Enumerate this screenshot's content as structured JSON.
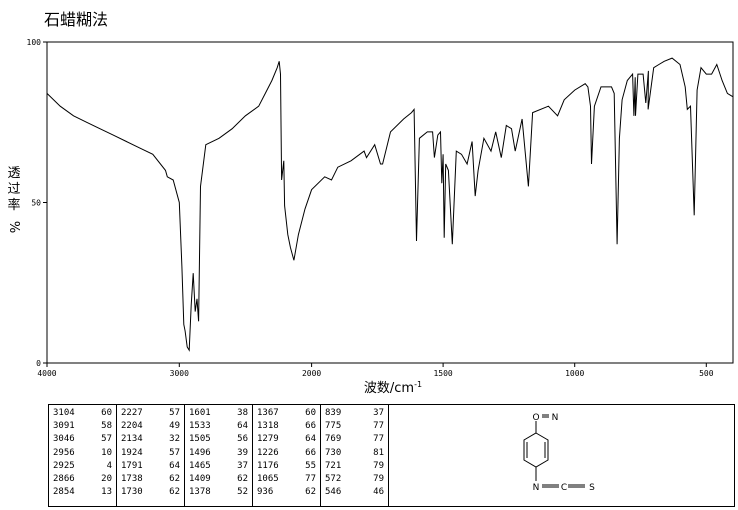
{
  "chart_data": {
    "type": "line",
    "title": "石蜡糊法",
    "xlabel": "波数/cm",
    "xlabel_sup": "-1",
    "ylabel_chars": [
      "透",
      "过",
      "率"
    ],
    "ylabel_unit": "%",
    "xlim": [
      4000,
      400
    ],
    "ylim": [
      0,
      100
    ],
    "x_ticks": [
      4000,
      3000,
      2000,
      1500,
      1000,
      500
    ],
    "y_ticks": [
      0,
      50,
      100
    ],
    "grid": false,
    "series": [
      {
        "points": [
          [
            4000,
            84
          ],
          [
            3900,
            80
          ],
          [
            3800,
            77
          ],
          [
            3700,
            75
          ],
          [
            3600,
            73
          ],
          [
            3500,
            71
          ],
          [
            3400,
            69
          ],
          [
            3300,
            67
          ],
          [
            3200,
            65
          ],
          [
            3104,
            60
          ],
          [
            3091,
            58
          ],
          [
            3046,
            57
          ],
          [
            3000,
            50
          ],
          [
            2980,
            30
          ],
          [
            2966,
            12
          ],
          [
            2956,
            10
          ],
          [
            2940,
            5
          ],
          [
            2925,
            4
          ],
          [
            2910,
            18
          ],
          [
            2895,
            28
          ],
          [
            2880,
            16
          ],
          [
            2866,
            20
          ],
          [
            2854,
            13
          ],
          [
            2840,
            55
          ],
          [
            2800,
            68
          ],
          [
            2700,
            70
          ],
          [
            2600,
            73
          ],
          [
            2500,
            77
          ],
          [
            2400,
            80
          ],
          [
            2350,
            84
          ],
          [
            2300,
            88
          ],
          [
            2260,
            92
          ],
          [
            2245,
            94
          ],
          [
            2235,
            90
          ],
          [
            2227,
            57
          ],
          [
            2210,
            63
          ],
          [
            2204,
            49
          ],
          [
            2180,
            40
          ],
          [
            2160,
            36
          ],
          [
            2134,
            32
          ],
          [
            2100,
            40
          ],
          [
            2050,
            48
          ],
          [
            2000,
            54
          ],
          [
            1950,
            58
          ],
          [
            1924,
            57
          ],
          [
            1900,
            61
          ],
          [
            1850,
            63
          ],
          [
            1800,
            66
          ],
          [
            1791,
            64
          ],
          [
            1760,
            68
          ],
          [
            1738,
            62
          ],
          [
            1730,
            62
          ],
          [
            1700,
            72
          ],
          [
            1650,
            76
          ],
          [
            1620,
            78
          ],
          [
            1610,
            79
          ],
          [
            1601,
            38
          ],
          [
            1590,
            70
          ],
          [
            1560,
            72
          ],
          [
            1540,
            72
          ],
          [
            1533,
            64
          ],
          [
            1520,
            71
          ],
          [
            1510,
            72
          ],
          [
            1505,
            56
          ],
          [
            1500,
            65
          ],
          [
            1496,
            39
          ],
          [
            1490,
            62
          ],
          [
            1480,
            60
          ],
          [
            1465,
            37
          ],
          [
            1450,
            66
          ],
          [
            1430,
            65
          ],
          [
            1409,
            62
          ],
          [
            1390,
            69
          ],
          [
            1378,
            52
          ],
          [
            1367,
            60
          ],
          [
            1345,
            70
          ],
          [
            1318,
            66
          ],
          [
            1300,
            72
          ],
          [
            1279,
            64
          ],
          [
            1260,
            74
          ],
          [
            1240,
            73
          ],
          [
            1226,
            66
          ],
          [
            1200,
            76
          ],
          [
            1176,
            55
          ],
          [
            1160,
            78
          ],
          [
            1100,
            80
          ],
          [
            1065,
            77
          ],
          [
            1040,
            82
          ],
          [
            1000,
            85
          ],
          [
            960,
            87
          ],
          [
            950,
            86
          ],
          [
            940,
            80
          ],
          [
            936,
            62
          ],
          [
            925,
            80
          ],
          [
            900,
            86
          ],
          [
            860,
            86
          ],
          [
            850,
            84
          ],
          [
            839,
            37
          ],
          [
            830,
            70
          ],
          [
            820,
            82
          ],
          [
            800,
            88
          ],
          [
            780,
            90
          ],
          [
            775,
            77
          ],
          [
            770,
            89
          ],
          [
            769,
            77
          ],
          [
            760,
            90
          ],
          [
            740,
            90
          ],
          [
            730,
            81
          ],
          [
            720,
            91
          ],
          [
            721,
            79
          ],
          [
            700,
            92
          ],
          [
            680,
            93
          ],
          [
            660,
            94
          ],
          [
            630,
            95
          ],
          [
            600,
            93
          ],
          [
            580,
            86
          ],
          [
            572,
            79
          ],
          [
            560,
            80
          ],
          [
            546,
            46
          ],
          [
            535,
            85
          ],
          [
            520,
            92
          ],
          [
            500,
            90
          ],
          [
            480,
            90
          ],
          [
            460,
            93
          ],
          [
            440,
            88
          ],
          [
            420,
            84
          ],
          [
            400,
            83
          ]
        ]
      }
    ],
    "peaks": [
      [
        [
          3104,
          60
        ],
        [
          3091,
          58
        ],
        [
          3046,
          57
        ],
        [
          2956,
          10
        ],
        [
          2925,
          4
        ],
        [
          2866,
          20
        ],
        [
          2854,
          13
        ]
      ],
      [
        [
          2227,
          57
        ],
        [
          2204,
          49
        ],
        [
          2134,
          32
        ],
        [
          1924,
          57
        ],
        [
          1791,
          64
        ],
        [
          1738,
          62
        ],
        [
          1730,
          62
        ]
      ],
      [
        [
          1601,
          38
        ],
        [
          1533,
          64
        ],
        [
          1505,
          56
        ],
        [
          1496,
          39
        ],
        [
          1465,
          37
        ],
        [
          1409,
          62
        ],
        [
          1378,
          52
        ]
      ],
      [
        [
          1367,
          60
        ],
        [
          1318,
          66
        ],
        [
          1279,
          64
        ],
        [
          1226,
          66
        ],
        [
          1176,
          55
        ],
        [
          1065,
          77
        ],
        [
          936,
          62
        ]
      ],
      [
        [
          839,
          37
        ],
        [
          775,
          77
        ],
        [
          769,
          77
        ],
        [
          730,
          81
        ],
        [
          721,
          79
        ],
        [
          572,
          79
        ],
        [
          546,
          46
        ]
      ]
    ],
    "structure_labels": {
      "top_o": "O",
      "top_n": "N",
      "bottom_n": "N",
      "bottom_c": "C",
      "bottom_s": "S"
    }
  }
}
